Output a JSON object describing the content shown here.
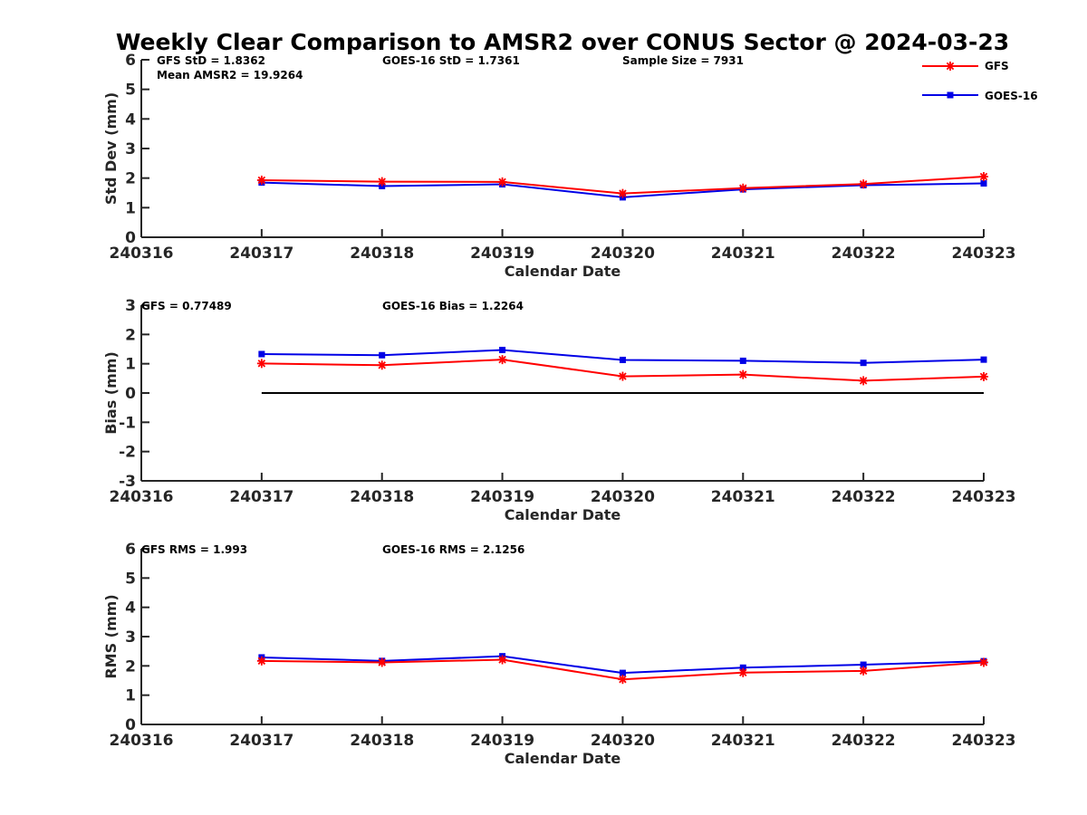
{
  "title": "Weekly Clear Comparison to AMSR2 over CONUS Sector @ 2024-03-23",
  "legend": [
    {
      "label": "GFS",
      "color": "#ff0000",
      "marker": "asterisk"
    },
    {
      "label": "GOES-16",
      "color": "#0000e6",
      "marker": "square"
    }
  ],
  "chart_data": [
    {
      "type": "line",
      "ylabel": "Std Dev (mm)",
      "xlabel": "Calendar Date",
      "ylim": [
        0,
        6
      ],
      "yticks": [
        "0",
        "1",
        "2",
        "3",
        "4",
        "5",
        "6"
      ],
      "xticks": [
        "240316",
        "240317",
        "240318",
        "240319",
        "240320",
        "240321",
        "240322",
        "240323"
      ],
      "annotations": [
        "GFS StD = 1.8362",
        "GOES-16 StD = 1.7361",
        "Sample Size = 7931",
        "Mean AMSR2 = 19.9264"
      ],
      "categories": [
        "240317",
        "240318",
        "240319",
        "240320",
        "240321",
        "240322",
        "240323"
      ],
      "series": [
        {
          "name": "GFS",
          "values": [
            1.93,
            1.88,
            1.87,
            1.48,
            1.66,
            1.8,
            2.05
          ]
        },
        {
          "name": "GOES-16",
          "values": [
            1.85,
            1.73,
            1.79,
            1.35,
            1.62,
            1.76,
            1.82
          ]
        }
      ],
      "zero_line": false
    },
    {
      "type": "line",
      "ylabel": "Bias (mm)",
      "xlabel": "Calendar Date",
      "ylim": [
        -3,
        3
      ],
      "yticks": [
        "-3",
        "-2",
        "-1",
        "0",
        "1",
        "2",
        "3"
      ],
      "xticks": [
        "240316",
        "240317",
        "240318",
        "240319",
        "240320",
        "240321",
        "240322",
        "240323"
      ],
      "annotations": [
        "GFS = 0.77489",
        "GOES-16 Bias  = 1.2264"
      ],
      "categories": [
        "240317",
        "240318",
        "240319",
        "240320",
        "240321",
        "240322",
        "240323"
      ],
      "series": [
        {
          "name": "GFS",
          "values": [
            1.01,
            0.95,
            1.14,
            0.57,
            0.63,
            0.42,
            0.56
          ]
        },
        {
          "name": "GOES-16",
          "values": [
            1.33,
            1.29,
            1.47,
            1.13,
            1.1,
            1.03,
            1.14
          ]
        }
      ],
      "zero_line": true
    },
    {
      "type": "line",
      "ylabel": "RMS (mm)",
      "xlabel": "Calendar Date",
      "ylim": [
        0,
        6
      ],
      "yticks": [
        "0",
        "1",
        "2",
        "3",
        "4",
        "5",
        "6"
      ],
      "xticks": [
        "240316",
        "240317",
        "240318",
        "240319",
        "240320",
        "240321",
        "240322",
        "240323"
      ],
      "annotations": [
        "GFS RMS = 1.993",
        "GOES-16 RMS = 2.1256"
      ],
      "categories": [
        "240317",
        "240318",
        "240319",
        "240320",
        "240321",
        "240322",
        "240323"
      ],
      "series": [
        {
          "name": "GFS",
          "values": [
            2.17,
            2.12,
            2.21,
            1.54,
            1.77,
            1.83,
            2.12
          ]
        },
        {
          "name": "GOES-16",
          "values": [
            2.29,
            2.17,
            2.33,
            1.76,
            1.94,
            2.04,
            2.16
          ]
        }
      ],
      "zero_line": false
    }
  ]
}
